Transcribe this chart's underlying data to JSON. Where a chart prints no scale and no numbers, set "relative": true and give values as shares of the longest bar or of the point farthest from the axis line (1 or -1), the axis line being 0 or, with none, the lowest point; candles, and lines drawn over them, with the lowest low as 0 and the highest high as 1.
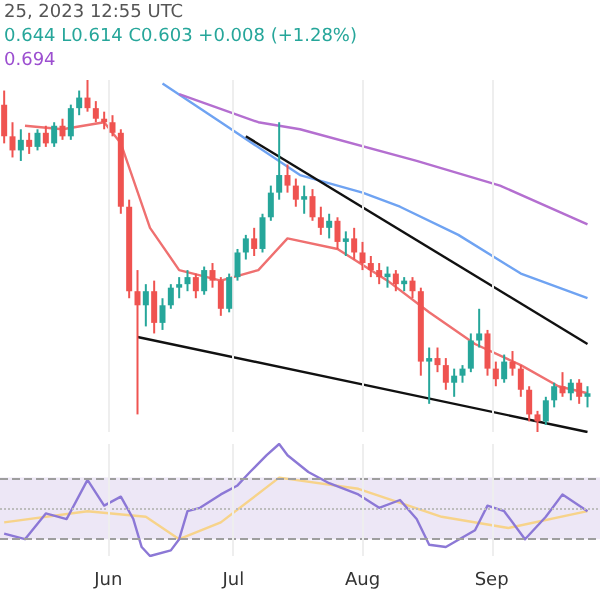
{
  "chart_data": [
    {
      "type": "candlestick",
      "relative": true,
      "tick_labels": false,
      "grid": "x",
      "xlim": [
        "2023-05-06",
        "2023-09-27"
      ],
      "xticks": [
        {
          "value": "2023-06-01",
          "label": null
        },
        {
          "value": "2023-07-01",
          "label": null
        },
        {
          "value": "2023-08-01",
          "label": null
        },
        {
          "value": "2023-09-01",
          "label": null
        }
      ],
      "annotations": [
        "25, 2023 12:55 UTC",
        "0.644 L0.614 C0.603 +0.008 (+1.28%)",
        "0.694"
      ],
      "x": [
        "2023-05-07",
        "2023-05-09",
        "2023-05-11",
        "2023-05-13",
        "2023-05-15",
        "2023-05-17",
        "2023-05-19",
        "2023-05-21",
        "2023-05-23",
        "2023-05-25",
        "2023-05-27",
        "2023-05-29",
        "2023-05-31",
        "2023-06-02",
        "2023-06-04",
        "2023-06-06",
        "2023-06-08",
        "2023-06-10",
        "2023-06-12",
        "2023-06-14",
        "2023-06-16",
        "2023-06-18",
        "2023-06-20",
        "2023-06-22",
        "2023-06-24",
        "2023-06-26",
        "2023-06-28",
        "2023-06-30",
        "2023-07-02",
        "2023-07-04",
        "2023-07-06",
        "2023-07-08",
        "2023-07-10",
        "2023-07-12",
        "2023-07-14",
        "2023-07-16",
        "2023-07-18",
        "2023-07-20",
        "2023-07-22",
        "2023-07-24",
        "2023-07-26",
        "2023-07-28",
        "2023-07-30",
        "2023-08-01",
        "2023-08-03",
        "2023-08-05",
        "2023-08-07",
        "2023-08-09",
        "2023-08-11",
        "2023-08-13",
        "2023-08-15",
        "2023-08-17",
        "2023-08-19",
        "2023-08-21",
        "2023-08-23",
        "2023-08-25",
        "2023-08-27",
        "2023-08-29",
        "2023-08-31",
        "2023-09-02",
        "2023-09-04",
        "2023-09-06",
        "2023-09-08",
        "2023-09-10",
        "2023-09-12",
        "2023-09-14",
        "2023-09-16",
        "2023-09-18",
        "2023-09-20",
        "2023-09-22",
        "2023-09-24"
      ],
      "ohlc": [
        [
          0.93,
          0.97,
          0.82,
          0.84
        ],
        [
          0.84,
          0.88,
          0.78,
          0.8
        ],
        [
          0.8,
          0.86,
          0.77,
          0.83
        ],
        [
          0.83,
          0.85,
          0.79,
          0.81
        ],
        [
          0.81,
          0.86,
          0.8,
          0.85
        ],
        [
          0.85,
          0.87,
          0.81,
          0.82
        ],
        [
          0.82,
          0.88,
          0.81,
          0.87
        ],
        [
          0.87,
          0.89,
          0.83,
          0.84
        ],
        [
          0.84,
          0.93,
          0.83,
          0.92
        ],
        [
          0.92,
          0.97,
          0.9,
          0.95
        ],
        [
          0.95,
          1.0,
          0.91,
          0.92
        ],
        [
          0.92,
          0.94,
          0.88,
          0.89
        ],
        [
          0.89,
          0.91,
          0.86,
          0.88
        ],
        [
          0.88,
          0.9,
          0.84,
          0.85
        ],
        [
          0.85,
          0.86,
          0.62,
          0.64
        ],
        [
          0.64,
          0.66,
          0.38,
          0.4
        ],
        [
          0.4,
          0.46,
          0.05,
          0.36
        ],
        [
          0.36,
          0.42,
          0.3,
          0.4
        ],
        [
          0.4,
          0.43,
          0.28,
          0.31
        ],
        [
          0.31,
          0.38,
          0.29,
          0.36
        ],
        [
          0.36,
          0.42,
          0.35,
          0.41
        ],
        [
          0.41,
          0.44,
          0.38,
          0.42
        ],
        [
          0.42,
          0.46,
          0.4,
          0.44
        ],
        [
          0.44,
          0.45,
          0.38,
          0.4
        ],
        [
          0.4,
          0.47,
          0.39,
          0.46
        ],
        [
          0.46,
          0.48,
          0.41,
          0.43
        ],
        [
          0.43,
          0.44,
          0.33,
          0.35
        ],
        [
          0.35,
          0.45,
          0.34,
          0.44
        ],
        [
          0.44,
          0.52,
          0.43,
          0.51
        ],
        [
          0.51,
          0.56,
          0.49,
          0.55
        ],
        [
          0.55,
          0.58,
          0.5,
          0.52
        ],
        [
          0.52,
          0.62,
          0.51,
          0.61
        ],
        [
          0.61,
          0.7,
          0.6,
          0.68
        ],
        [
          0.68,
          0.88,
          0.66,
          0.73
        ],
        [
          0.73,
          0.76,
          0.68,
          0.7
        ],
        [
          0.7,
          0.72,
          0.64,
          0.66
        ],
        [
          0.66,
          0.7,
          0.62,
          0.67
        ],
        [
          0.67,
          0.69,
          0.6,
          0.61
        ],
        [
          0.61,
          0.64,
          0.56,
          0.58
        ],
        [
          0.58,
          0.62,
          0.55,
          0.6
        ],
        [
          0.6,
          0.61,
          0.52,
          0.54
        ],
        [
          0.54,
          0.57,
          0.5,
          0.55
        ],
        [
          0.55,
          0.58,
          0.49,
          0.51
        ],
        [
          0.51,
          0.54,
          0.46,
          0.48
        ],
        [
          0.48,
          0.5,
          0.44,
          0.46
        ],
        [
          0.46,
          0.48,
          0.42,
          0.44
        ],
        [
          0.44,
          0.47,
          0.41,
          0.45
        ],
        [
          0.45,
          0.46,
          0.4,
          0.42
        ],
        [
          0.42,
          0.44,
          0.4,
          0.43
        ],
        [
          0.43,
          0.44,
          0.38,
          0.4
        ],
        [
          0.4,
          0.41,
          0.16,
          0.2
        ],
        [
          0.2,
          0.24,
          0.08,
          0.21
        ],
        [
          0.21,
          0.24,
          0.17,
          0.19
        ],
        [
          0.19,
          0.21,
          0.12,
          0.14
        ],
        [
          0.14,
          0.18,
          0.1,
          0.16
        ],
        [
          0.16,
          0.19,
          0.14,
          0.18
        ],
        [
          0.18,
          0.28,
          0.17,
          0.26
        ],
        [
          0.26,
          0.35,
          0.24,
          0.28
        ],
        [
          0.28,
          0.29,
          0.16,
          0.18
        ],
        [
          0.18,
          0.2,
          0.13,
          0.15
        ],
        [
          0.15,
          0.22,
          0.14,
          0.2
        ],
        [
          0.2,
          0.23,
          0.16,
          0.18
        ],
        [
          0.18,
          0.19,
          0.1,
          0.12
        ],
        [
          0.12,
          0.13,
          0.03,
          0.05
        ],
        [
          0.05,
          0.06,
          0.0,
          0.03
        ],
        [
          0.03,
          0.1,
          0.02,
          0.09
        ],
        [
          0.09,
          0.14,
          0.07,
          0.13
        ],
        [
          0.13,
          0.17,
          0.1,
          0.11
        ],
        [
          0.11,
          0.15,
          0.09,
          0.14
        ],
        [
          0.14,
          0.15,
          0.08,
          0.1
        ],
        [
          0.1,
          0.13,
          0.07,
          0.11
        ]
      ],
      "series": [
        {
          "type": "line",
          "color": "#ef7070",
          "x": [
            "2023-05-12",
            "2023-05-21",
            "2023-05-31",
            "2023-06-04",
            "2023-06-11",
            "2023-06-18",
            "2023-06-28",
            "2023-07-07",
            "2023-07-14",
            "2023-07-26",
            "2023-08-07",
            "2023-08-17",
            "2023-08-28",
            "2023-09-08",
            "2023-09-17",
            "2023-09-24"
          ],
          "values": [
            0.87,
            0.86,
            0.88,
            0.82,
            0.58,
            0.46,
            0.43,
            0.46,
            0.55,
            0.52,
            0.43,
            0.34,
            0.25,
            0.19,
            0.13,
            0.11
          ]
        },
        {
          "type": "line",
          "color": "#6fa3f2",
          "x": [
            "2023-06-14",
            "2023-06-28",
            "2023-07-17",
            "2023-08-01",
            "2023-08-10",
            "2023-08-24",
            "2023-09-08",
            "2023-09-24"
          ],
          "values": [
            0.99,
            0.88,
            0.73,
            0.68,
            0.64,
            0.56,
            0.45,
            0.38
          ]
        },
        {
          "type": "line",
          "color": "#b46fd0",
          "x": [
            "2023-06-18",
            "2023-07-07",
            "2023-07-17",
            "2023-08-14",
            "2023-09-03",
            "2023-09-24"
          ],
          "values": [
            0.96,
            0.88,
            0.86,
            0.77,
            0.7,
            0.59
          ]
        },
        {
          "type": "line",
          "color": "#111111",
          "x": [
            "2023-07-04",
            "2023-09-24"
          ],
          "values": [
            0.84,
            0.25
          ]
        },
        {
          "type": "line",
          "color": "#111111",
          "x": [
            "2023-06-08",
            "2023-09-24"
          ],
          "values": [
            0.27,
            0.0
          ]
        }
      ]
    },
    {
      "type": "line",
      "relative": true,
      "tick_labels": "x",
      "grid": "x",
      "xlim": [
        "2023-05-06",
        "2023-09-27"
      ],
      "xticks": [
        {
          "value": "2023-06-01",
          "label": "Jun"
        },
        {
          "value": "2023-07-01",
          "label": "Jul"
        },
        {
          "value": "2023-08-01",
          "label": "Aug"
        },
        {
          "value": "2023-09-01",
          "label": "Sep"
        }
      ],
      "bands": [
        {
          "axis": "y",
          "from": 0.15,
          "to": 0.7,
          "color": "#ede7f6"
        }
      ],
      "ref_lines": [
        {
          "axis": "y",
          "value": 0.7,
          "line_style": "dashed",
          "color": "#9e9e9e"
        },
        {
          "axis": "y",
          "value": 0.43,
          "line_style": "dotted",
          "color": "#bdbdbd"
        },
        {
          "axis": "y",
          "value": 0.15,
          "line_style": "dashed",
          "color": "#9e9e9e"
        }
      ],
      "series": [
        {
          "color": "#f7d38a",
          "x": [
            "2023-05-07",
            "2023-05-27",
            "2023-06-10",
            "2023-06-18",
            "2023-06-28",
            "2023-07-12",
            "2023-07-31",
            "2023-08-20",
            "2023-09-05",
            "2023-09-24"
          ],
          "values": [
            0.3,
            0.4,
            0.35,
            0.15,
            0.3,
            0.7,
            0.6,
            0.35,
            0.25,
            0.4
          ]
        },
        {
          "color": "#8c78d6",
          "x": [
            "2023-05-07",
            "2023-05-12",
            "2023-05-17",
            "2023-05-22",
            "2023-05-27",
            "2023-05-31",
            "2023-06-04",
            "2023-06-07",
            "2023-06-09",
            "2023-06-11",
            "2023-06-16",
            "2023-06-18",
            "2023-06-20",
            "2023-06-23",
            "2023-06-28",
            "2023-07-02",
            "2023-07-05",
            "2023-07-09",
            "2023-07-12",
            "2023-07-14",
            "2023-07-19",
            "2023-07-24",
            "2023-07-31",
            "2023-08-05",
            "2023-08-10",
            "2023-08-14",
            "2023-08-17",
            "2023-08-21",
            "2023-08-28",
            "2023-08-31",
            "2023-09-04",
            "2023-09-09",
            "2023-09-14",
            "2023-09-18",
            "2023-09-24"
          ],
          "values": [
            0.2,
            0.15,
            0.38,
            0.33,
            0.68,
            0.45,
            0.53,
            0.33,
            0.08,
            0.0,
            0.05,
            0.15,
            0.4,
            0.43,
            0.55,
            0.63,
            0.75,
            0.9,
            1.0,
            0.9,
            0.75,
            0.65,
            0.55,
            0.43,
            0.5,
            0.33,
            0.1,
            0.08,
            0.23,
            0.45,
            0.4,
            0.15,
            0.35,
            0.55,
            0.4
          ]
        }
      ]
    }
  ]
}
